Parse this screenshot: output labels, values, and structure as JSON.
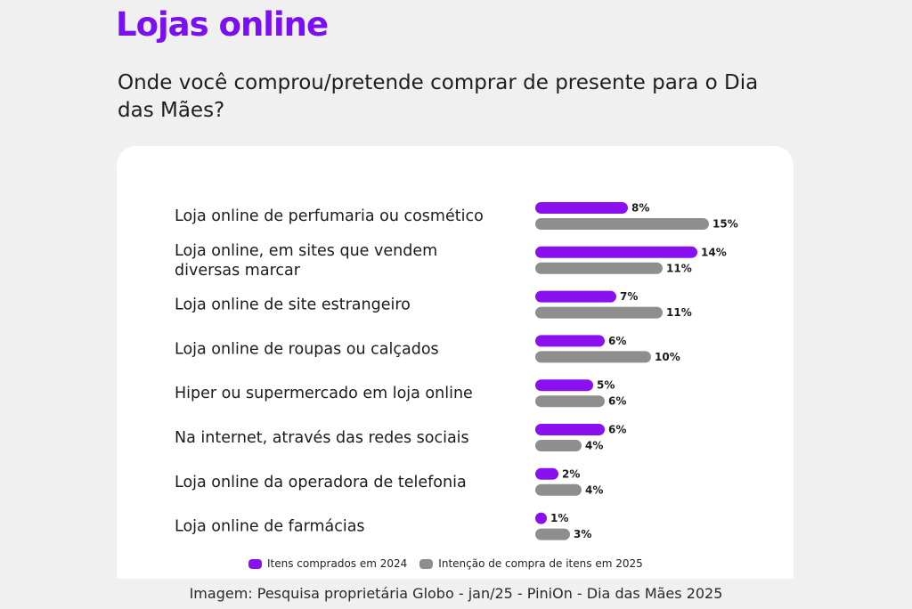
{
  "title": "Lojas online",
  "subtitle": "Onde você comprou/pretende comprar de presente para o Dia das Mães?",
  "caption": "Imagem: Pesquisa proprietária Globo - jan/25 - PiniOn - Dia das Mães 2025",
  "colors": {
    "purple": "#8a10f0",
    "gray": "#8e8e8e",
    "title": "#7a0ff2"
  },
  "chart_data": {
    "type": "bar",
    "orientation": "horizontal",
    "categories": [
      "Loja online de perfumaria ou cosmético",
      "Loja online, em sites que vendem diversas marcar",
      "Loja online de site estrangeiro",
      "Loja online de roupas ou calçados",
      "Hiper ou supermercado em loja online",
      "Na internet, através das redes sociais",
      "Loja online da operadora de telefonia",
      "Loja online de farmácias"
    ],
    "category_lines": [
      [
        "Loja online de perfumaria ou cosmético"
      ],
      [
        "Loja online, em sites que vendem",
        "diversas marcar"
      ],
      [
        "Loja online de site estrangeiro"
      ],
      [
        "Loja online de roupas ou calçados"
      ],
      [
        "Hiper ou supermercado em loja online"
      ],
      [
        "Na internet, através das redes sociais"
      ],
      [
        "Loja online da operadora de telefonia"
      ],
      [
        "Loja online de farmácias"
      ]
    ],
    "series": [
      {
        "name": "Itens comprados em 2024",
        "color": "#8a10f0",
        "values": [
          8,
          14,
          7,
          6,
          5,
          6,
          2,
          1
        ],
        "labels": [
          "8%",
          "14%",
          "7%",
          "6%",
          "5%",
          "6%",
          "2%",
          "1%"
        ]
      },
      {
        "name": "Intenção de compra de itens em 2025",
        "color": "#8e8e8e",
        "values": [
          15,
          11,
          11,
          10,
          6,
          4,
          4,
          3
        ],
        "labels": [
          "15%",
          "11%",
          "11%",
          "10%",
          "6%",
          "4%",
          "4%",
          "3%"
        ]
      }
    ],
    "unit": "%",
    "legend_position": "bottom",
    "grid": false
  }
}
